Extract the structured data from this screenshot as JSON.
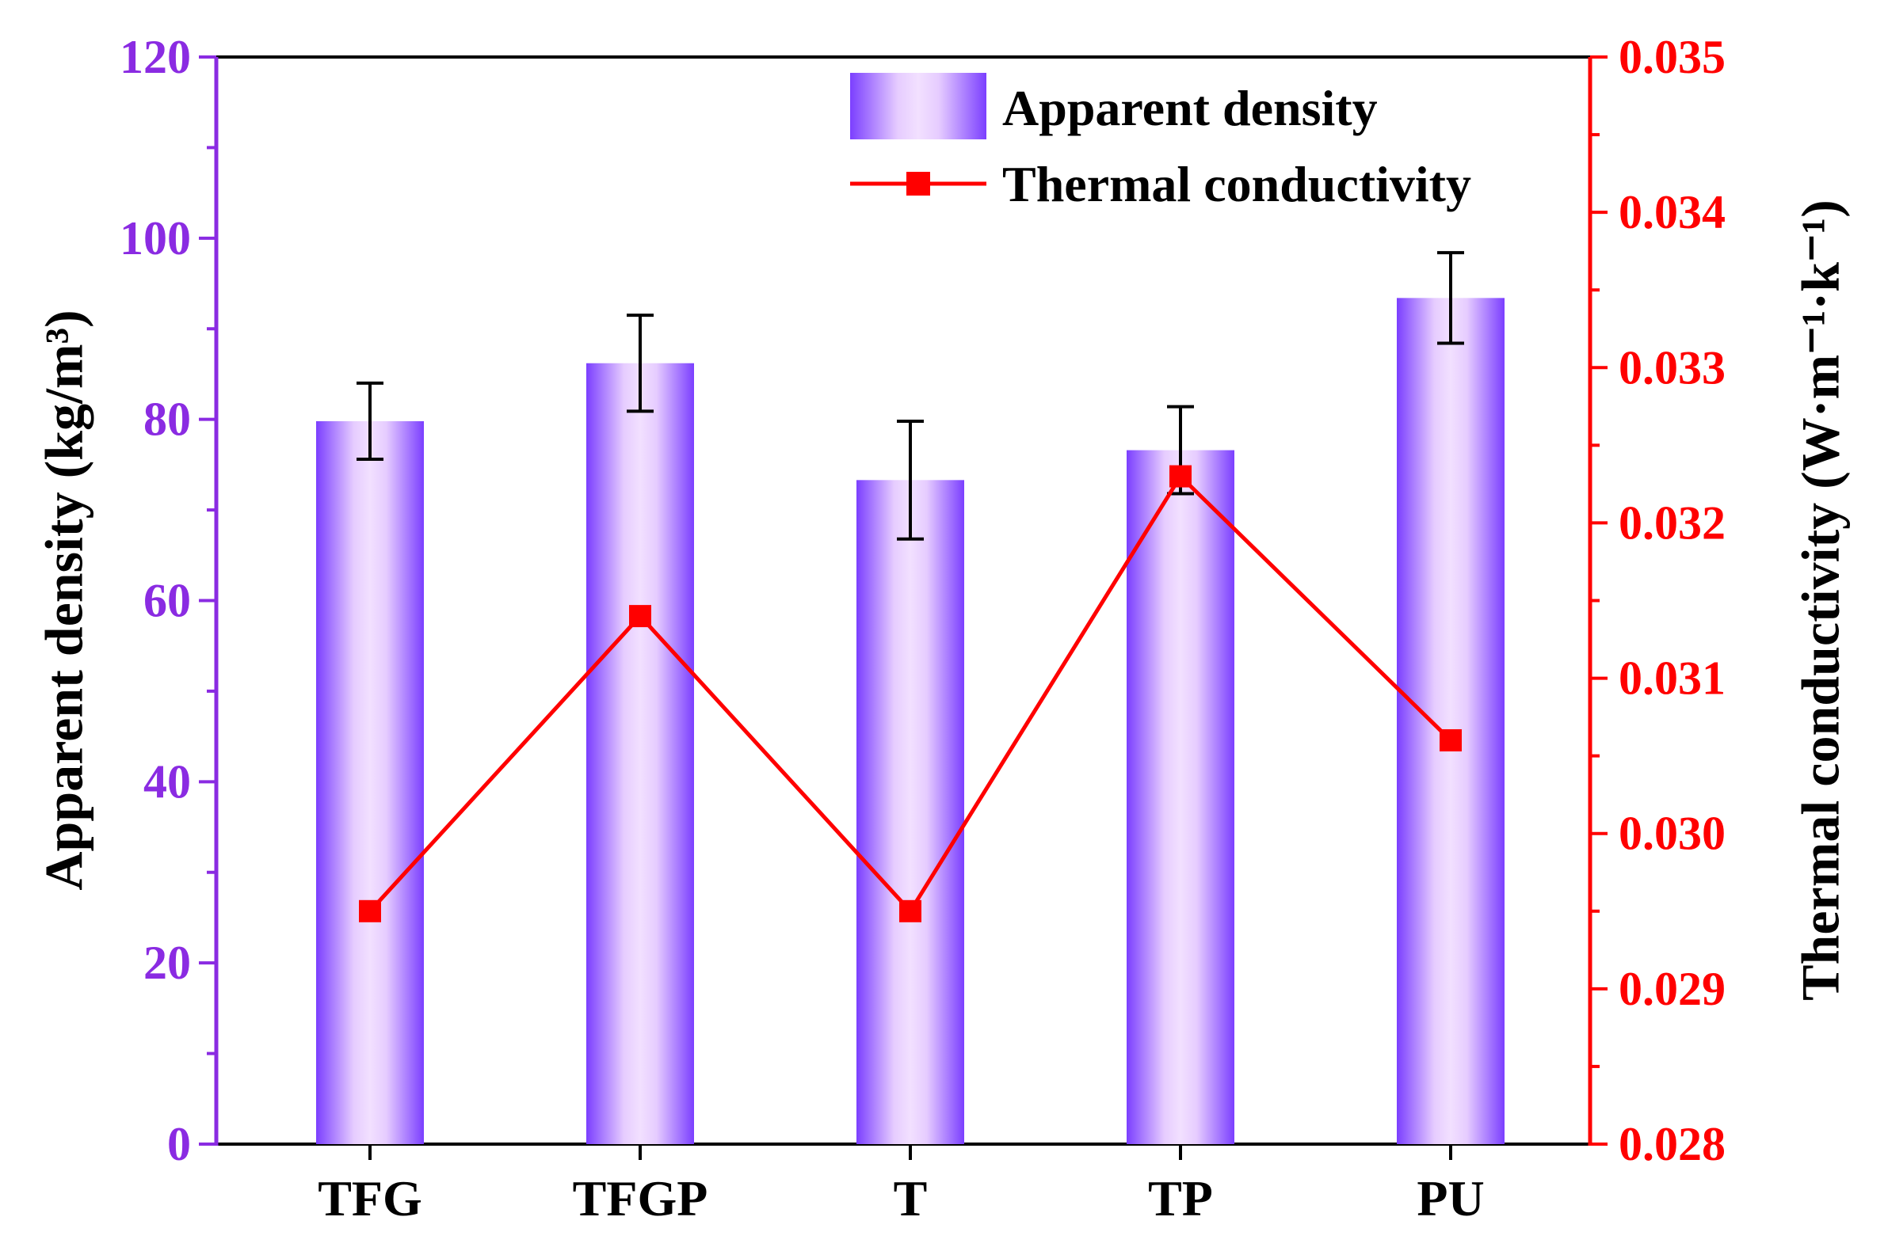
{
  "chart_data": {
    "type": "bar",
    "categories": [
      "TFG",
      "TFGP",
      "T",
      "TP",
      "PU"
    ],
    "series": [
      {
        "name": "Apparent density",
        "type": "bar",
        "axis": "left",
        "values": [
          79.8,
          86.2,
          73.3,
          76.6,
          93.4
        ],
        "errors": [
          4.2,
          5.3,
          6.5,
          4.8,
          5.0
        ]
      },
      {
        "name": "Thermal conductivity",
        "type": "line",
        "axis": "right",
        "values": [
          0.0295,
          0.0314,
          0.0295,
          0.0323,
          0.0306
        ]
      }
    ],
    "y_left": {
      "ylabel": "Apparent density (kg/m³)",
      "ylim": [
        0,
        120
      ],
      "ticks": [
        "0",
        "20",
        "40",
        "60",
        "80",
        "100",
        "120"
      ]
    },
    "y_right": {
      "ylabel": "Thermal conductivity (W·m⁻¹·k⁻¹)",
      "ylim": [
        0.028,
        0.035
      ],
      "ticks": [
        "0.028",
        "0.029",
        "0.030",
        "0.031",
        "0.032",
        "0.033",
        "0.034",
        "0.035"
      ]
    },
    "legend": {
      "position": "top-right",
      "entries": [
        "Apparent density",
        "Thermal conductivity"
      ]
    },
    "colors": {
      "left_axis": "#8a2be2",
      "right_axis": "#ff0000",
      "bar_edge": "#7b3fff",
      "bar_center": "#f0dcff",
      "line": "#ff0000",
      "error_bar": "#000000",
      "frame": "#000000"
    }
  }
}
